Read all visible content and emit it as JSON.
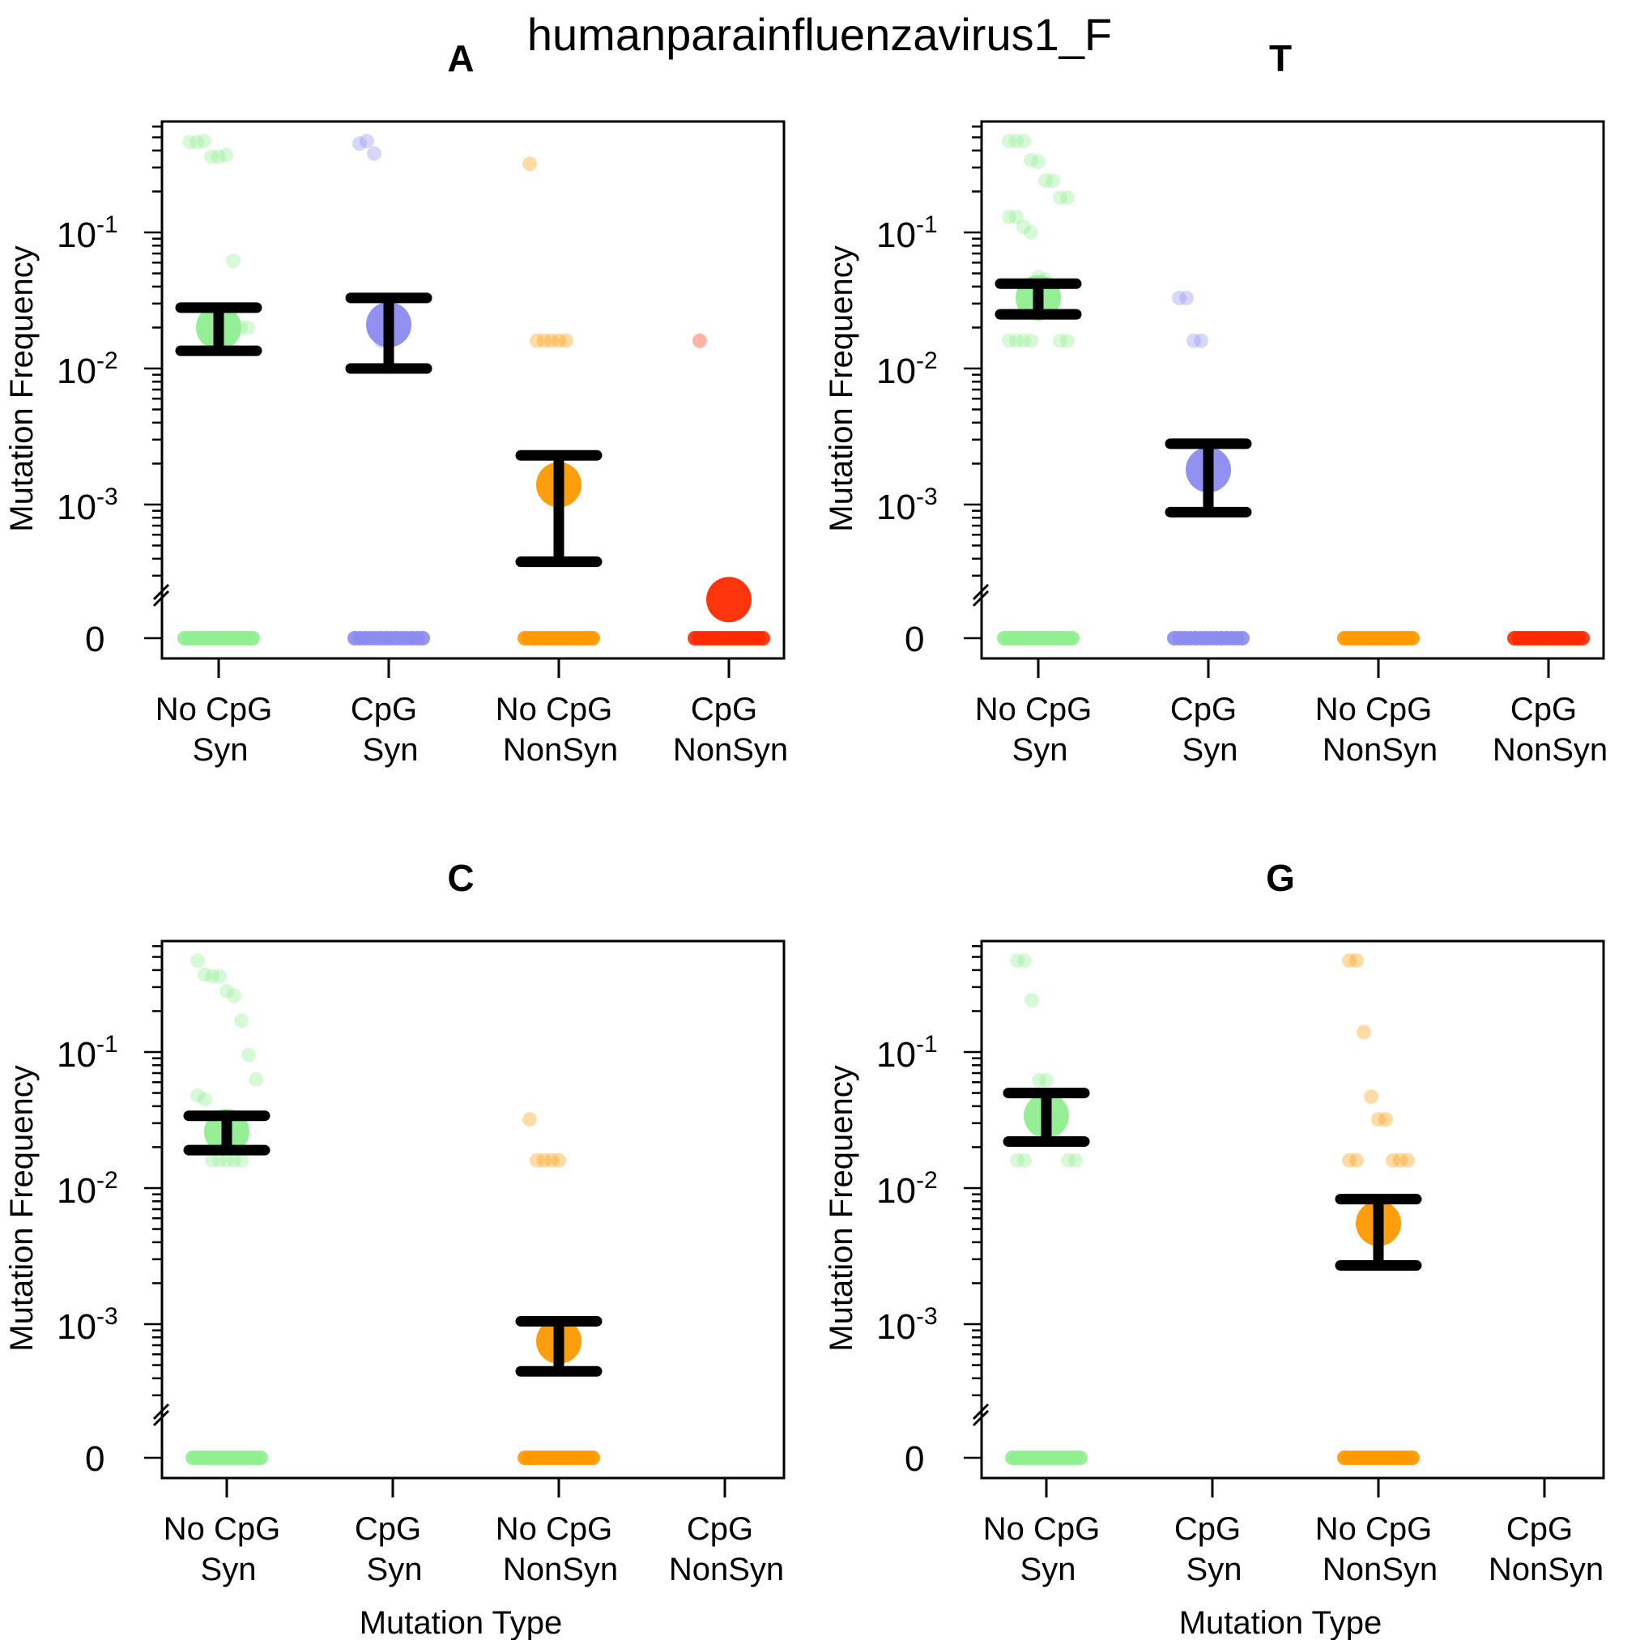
{
  "title": "humanparainfluenzavirus1_F",
  "colors": {
    "No CpG Syn": "#90ee90",
    "CpG Syn": "#8b8bf0",
    "No CpG NonSyn": "#ff9900",
    "CpG NonSyn": "#ff2a00"
  },
  "axis": {
    "ylabel": "Mutation Frequency",
    "xlabel": "Mutation Type",
    "yticks": [
      {
        "base": "10",
        "exp": "-1"
      },
      {
        "base": "10",
        "exp": "-2"
      },
      {
        "base": "10",
        "exp": "-3"
      }
    ],
    "zero_label": "0"
  },
  "chart_data": [
    {
      "type": "scatter",
      "title": "A",
      "ylabel": "Mutation Frequency",
      "xlabel": "",
      "yscale": "log10 with axis break at 0",
      "ylim": [
        0.0002,
        0.6
      ],
      "categories": [
        {
          "line1": "No CpG",
          "line2": "Syn"
        },
        {
          "line1": "CpG",
          "line2": "Syn"
        },
        {
          "line1": "No CpG",
          "line2": "NonSyn"
        },
        {
          "line1": "CpG",
          "line2": "NonSyn"
        }
      ],
      "series": [
        {
          "category": "No CpG Syn",
          "points": [
            0.46,
            0.46,
            0.47,
            0.36,
            0.36,
            0.37,
            0.062,
            0.02,
            0.02
          ],
          "zeros": 18,
          "mean": 0.02,
          "ci": [
            0.0135,
            0.028
          ]
        },
        {
          "category": "CpG Syn",
          "points": [
            0.45,
            0.47,
            0.38,
            0.016,
            0.016
          ],
          "zeros": 14,
          "mean": 0.021,
          "ci": [
            0.01,
            0.033
          ]
        },
        {
          "category": "No CpG NonSyn",
          "points": [
            0.32,
            0.016,
            0.016,
            0.016,
            0.016,
            0.016
          ],
          "zeros": 18,
          "mean": 0.0014,
          "ci": [
            0.00038,
            0.0023
          ]
        },
        {
          "category": "CpG NonSyn",
          "points": [
            0.016
          ],
          "zeros": 18,
          "mean": 0.0002,
          "ci": null
        }
      ]
    },
    {
      "type": "scatter",
      "title": "T",
      "ylabel": "Mutation Frequency",
      "xlabel": "",
      "yscale": "log10 with axis break at 0",
      "ylim": [
        0.0002,
        0.6
      ],
      "categories": [
        {
          "line1": "No CpG",
          "line2": "Syn"
        },
        {
          "line1": "CpG",
          "line2": "Syn"
        },
        {
          "line1": "No CpG",
          "line2": "NonSyn"
        },
        {
          "line1": "CpG",
          "line2": "NonSyn"
        }
      ],
      "series": [
        {
          "category": "No CpG Syn",
          "points": [
            0.47,
            0.47,
            0.47,
            0.34,
            0.33,
            0.24,
            0.24,
            0.18,
            0.18,
            0.13,
            0.13,
            0.11,
            0.1,
            0.047,
            0.045,
            0.033,
            0.016,
            0.016,
            0.016,
            0.016,
            0.016,
            0.016
          ],
          "zeros": 18,
          "mean": 0.033,
          "ci": [
            0.025,
            0.042
          ]
        },
        {
          "category": "CpG Syn",
          "points": [
            0.033,
            0.033,
            0.016,
            0.016
          ],
          "zeros": 14,
          "mean": 0.0018,
          "ci": [
            0.00088,
            0.0028
          ]
        },
        {
          "category": "No CpG NonSyn",
          "points": [],
          "zeros": 18,
          "mean": null,
          "ci": null
        },
        {
          "category": "CpG NonSyn",
          "points": [],
          "zeros": 18,
          "mean": null,
          "ci": null
        }
      ]
    },
    {
      "type": "scatter",
      "title": "C",
      "ylabel": "Mutation Frequency",
      "xlabel": "Mutation Type",
      "yscale": "log10 with axis break at 0",
      "ylim": [
        0.0002,
        0.6
      ],
      "categories": [
        {
          "line1": "No CpG",
          "line2": "Syn"
        },
        {
          "line1": "CpG",
          "line2": "Syn"
        },
        {
          "line1": "No CpG",
          "line2": "NonSyn"
        },
        {
          "line1": "CpG",
          "line2": "NonSyn"
        }
      ],
      "series": [
        {
          "category": "No CpG Syn",
          "points": [
            0.47,
            0.37,
            0.36,
            0.36,
            0.28,
            0.26,
            0.17,
            0.095,
            0.063,
            0.048,
            0.045,
            0.016,
            0.016,
            0.016,
            0.016,
            0.016
          ],
          "zeros": 18,
          "mean": 0.026,
          "ci": [
            0.019,
            0.034
          ]
        },
        {
          "category": "CpG Syn",
          "points": [],
          "zeros": 0,
          "mean": null,
          "ci": null
        },
        {
          "category": "No CpG NonSyn",
          "points": [
            0.032,
            0.016,
            0.016,
            0.016,
            0.016
          ],
          "zeros": 18,
          "mean": 0.00075,
          "ci": [
            0.00045,
            0.00105
          ]
        },
        {
          "category": "CpG NonSyn",
          "points": [],
          "zeros": 0,
          "mean": null,
          "ci": null
        }
      ]
    },
    {
      "type": "scatter",
      "title": "G",
      "ylabel": "Mutation Frequency",
      "xlabel": "Mutation Type",
      "yscale": "log10 with axis break at 0",
      "ylim": [
        0.0002,
        0.6
      ],
      "categories": [
        {
          "line1": "No CpG",
          "line2": "Syn"
        },
        {
          "line1": "CpG",
          "line2": "Syn"
        },
        {
          "line1": "No CpG",
          "line2": "NonSyn"
        },
        {
          "line1": "CpG",
          "line2": "NonSyn"
        }
      ],
      "series": [
        {
          "category": "No CpG Syn",
          "points": [
            0.47,
            0.47,
            0.24,
            0.062,
            0.062,
            0.032,
            0.032,
            0.016,
            0.016,
            0.016,
            0.016
          ],
          "zeros": 18,
          "mean": 0.034,
          "ci": [
            0.022,
            0.05
          ]
        },
        {
          "category": "CpG Syn",
          "points": [],
          "zeros": 0,
          "mean": null,
          "ci": null
        },
        {
          "category": "No CpG NonSyn",
          "points": [
            0.47,
            0.47,
            0.14,
            0.047,
            0.032,
            0.032,
            0.016,
            0.016,
            0.016,
            0.016,
            0.016
          ],
          "zeros": 18,
          "mean": 0.0055,
          "ci": [
            0.0027,
            0.0083
          ]
        },
        {
          "category": "CpG NonSyn",
          "points": [],
          "zeros": 0,
          "mean": null,
          "ci": null
        }
      ]
    }
  ]
}
